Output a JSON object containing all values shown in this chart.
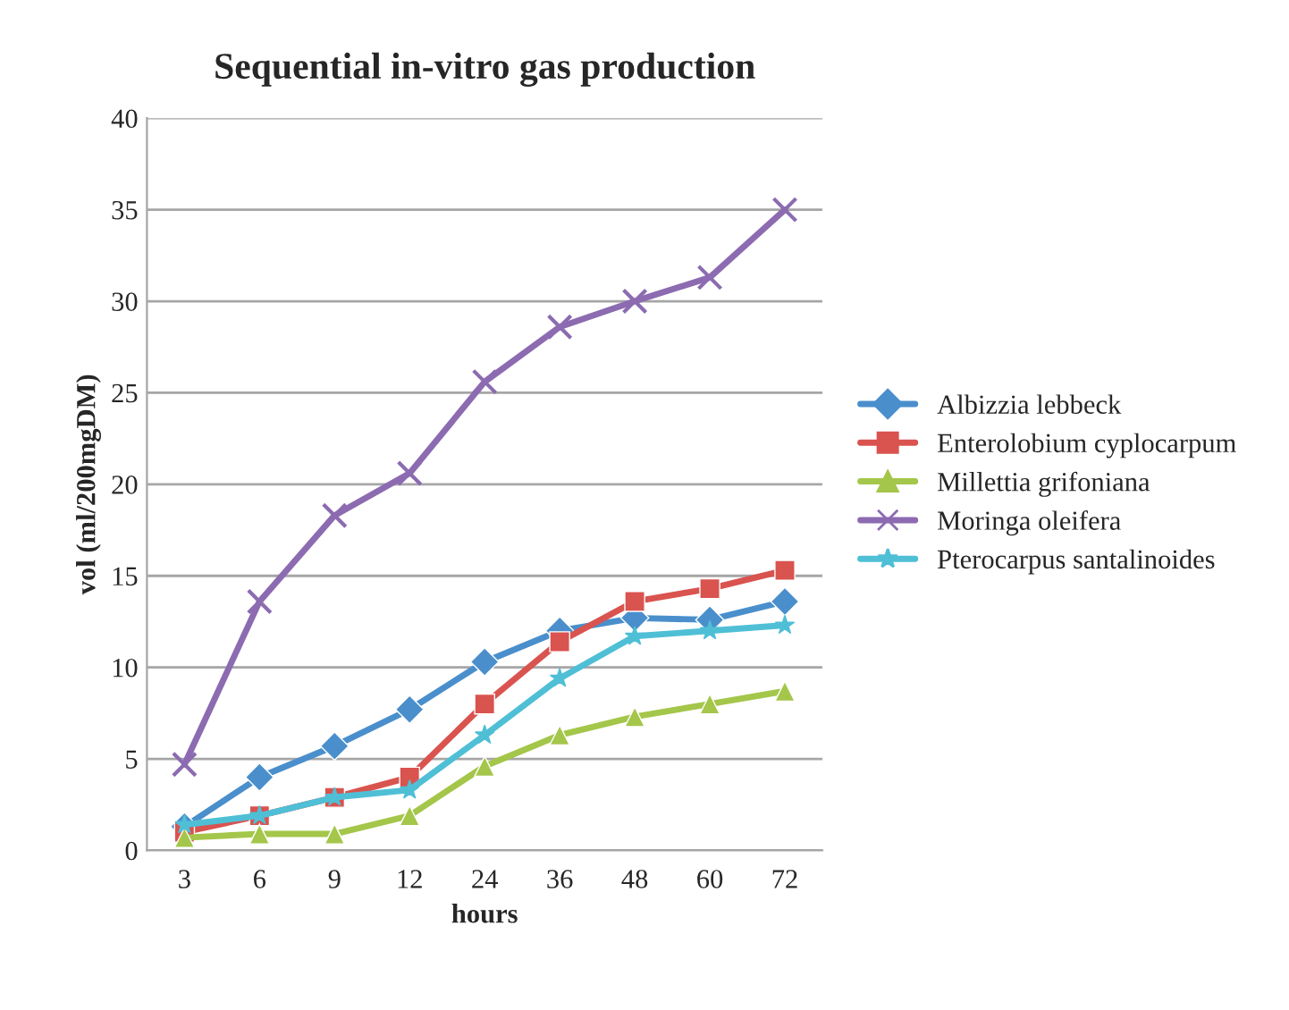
{
  "chart_data": {
    "type": "line",
    "title": "Sequential in-vitro gas production",
    "xlabel": "hours",
    "ylabel": "vol (ml/200mgDM)",
    "categories": [
      "3",
      "6",
      "9",
      "12",
      "24",
      "36",
      "48",
      "60",
      "72"
    ],
    "ylim": [
      0,
      40
    ],
    "yticks": [
      0,
      5,
      10,
      15,
      20,
      25,
      30,
      35,
      40
    ],
    "grid": "y",
    "legend": "right",
    "line_style": "solid",
    "series": [
      {
        "name": "Albizzia lebbeck",
        "color": "#4a8fcc",
        "marker": "diamond",
        "values": [
          1.3,
          4.0,
          5.7,
          7.7,
          10.3,
          12.0,
          12.7,
          12.6,
          13.6
        ]
      },
      {
        "name": "Enterolobium cyplocarpum",
        "color": "#d9534f",
        "marker": "square",
        "values": [
          1.0,
          1.9,
          2.9,
          4.0,
          8.0,
          11.4,
          13.6,
          14.3,
          15.3
        ]
      },
      {
        "name": "Millettia grifoniana",
        "color": "#a4c64a",
        "marker": "triangle",
        "values": [
          0.7,
          0.9,
          0.9,
          1.9,
          4.6,
          6.3,
          7.3,
          8.0,
          8.7
        ]
      },
      {
        "name": "Moringa oleifera",
        "color": "#8c6bb1",
        "marker": "cross",
        "values": [
          4.7,
          13.6,
          18.3,
          20.6,
          25.6,
          28.6,
          30.0,
          31.3,
          35.0
        ]
      },
      {
        "name": "Pterocarpus santalinoides",
        "color": "#4fbfd6",
        "marker": "star",
        "values": [
          1.4,
          1.9,
          2.9,
          3.3,
          6.3,
          9.4,
          11.7,
          12.0,
          12.3
        ]
      }
    ]
  }
}
